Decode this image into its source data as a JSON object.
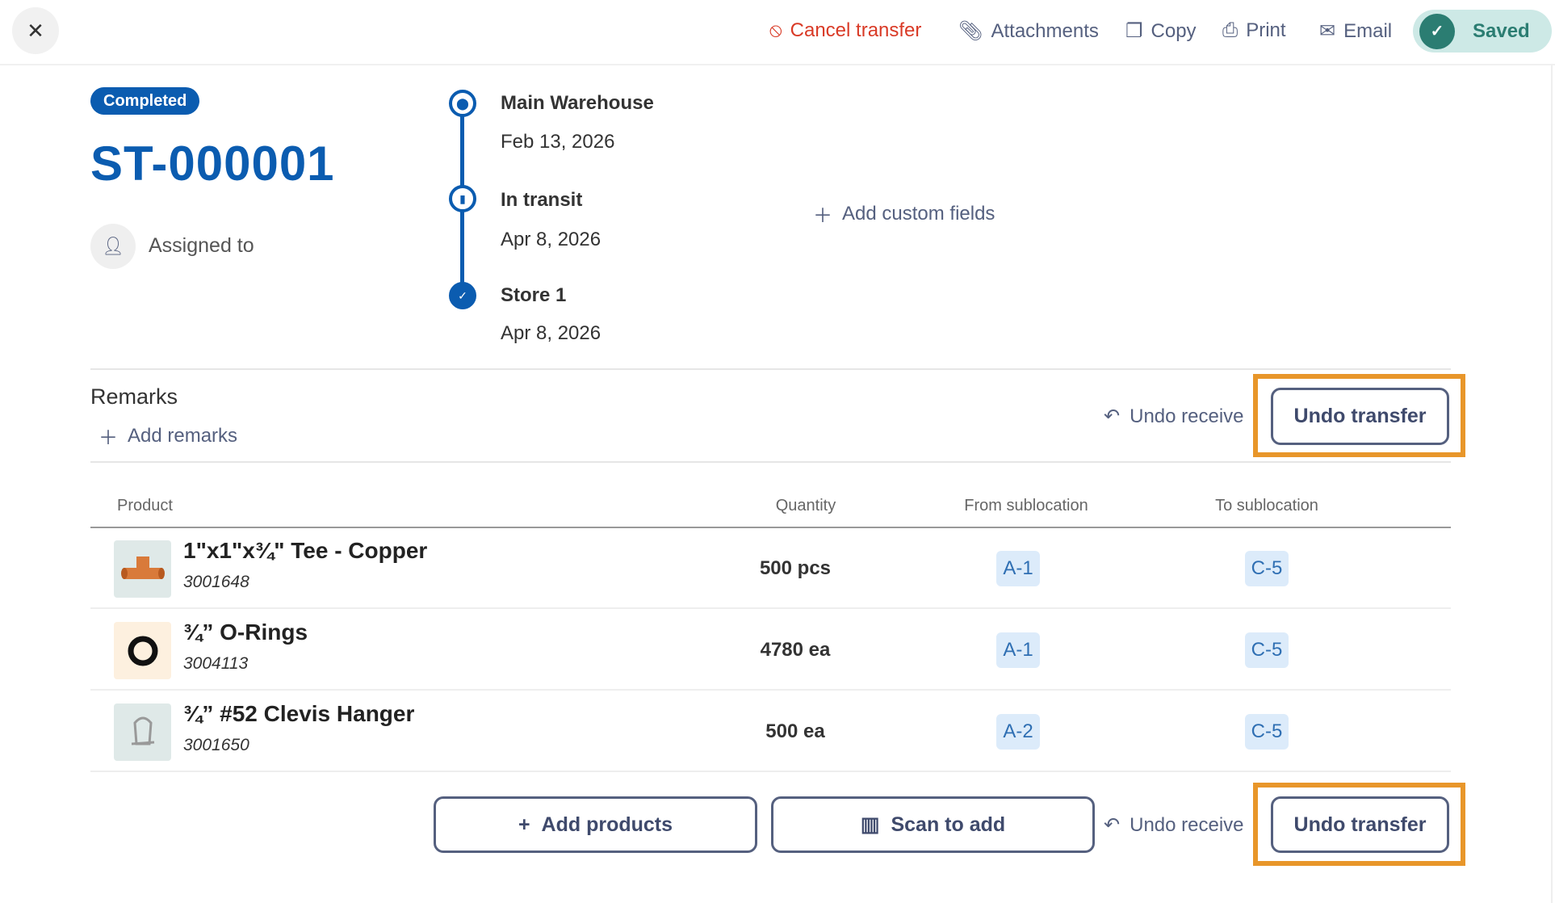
{
  "topbar": {
    "close_icon": "close-icon",
    "cancel_transfer": "Cancel transfer",
    "attachments": "Attachments",
    "copy": "Copy",
    "print": "Print",
    "email": "Email",
    "saved": "Saved"
  },
  "header": {
    "status": "Completed",
    "transfer_id": "ST-000001",
    "assigned_to": "Assigned to",
    "add_custom_fields": "Add custom fields"
  },
  "timeline": [
    {
      "name": "Main Warehouse",
      "date": "Feb 13, 2026",
      "icon": "location-pin-icon"
    },
    {
      "name": "In transit",
      "date": "Apr 8, 2026",
      "icon": "truck-icon"
    },
    {
      "name": "Store 1",
      "date": "Apr 8, 2026",
      "icon": "check-icon"
    }
  ],
  "remarks": {
    "label": "Remarks",
    "add": "Add remarks"
  },
  "actions": {
    "undo_receive": "Undo receive",
    "undo_transfer": "Undo transfer",
    "add_products": "Add products",
    "scan_to_add": "Scan to add"
  },
  "table": {
    "headers": [
      "Product",
      "Quantity",
      "From sublocation",
      "To sublocation"
    ],
    "rows": [
      {
        "name": "1\"x1\"x¾\" Tee - Copper",
        "code": "3001648",
        "qty": "500 pcs",
        "from": "A-1",
        "to": "C-5"
      },
      {
        "name": "¾” O-Rings",
        "code": "3004113",
        "qty": "4780 ea",
        "from": "A-1",
        "to": "C-5"
      },
      {
        "name": "¾” #52 Clevis Hanger",
        "code": "3001650",
        "qty": "500 ea",
        "from": "A-2",
        "to": "C-5"
      }
    ]
  },
  "colors": {
    "brand": "#0b5cb0",
    "danger": "#d93a26",
    "saved": "#2b7d72",
    "highlight": "#e8962a"
  }
}
